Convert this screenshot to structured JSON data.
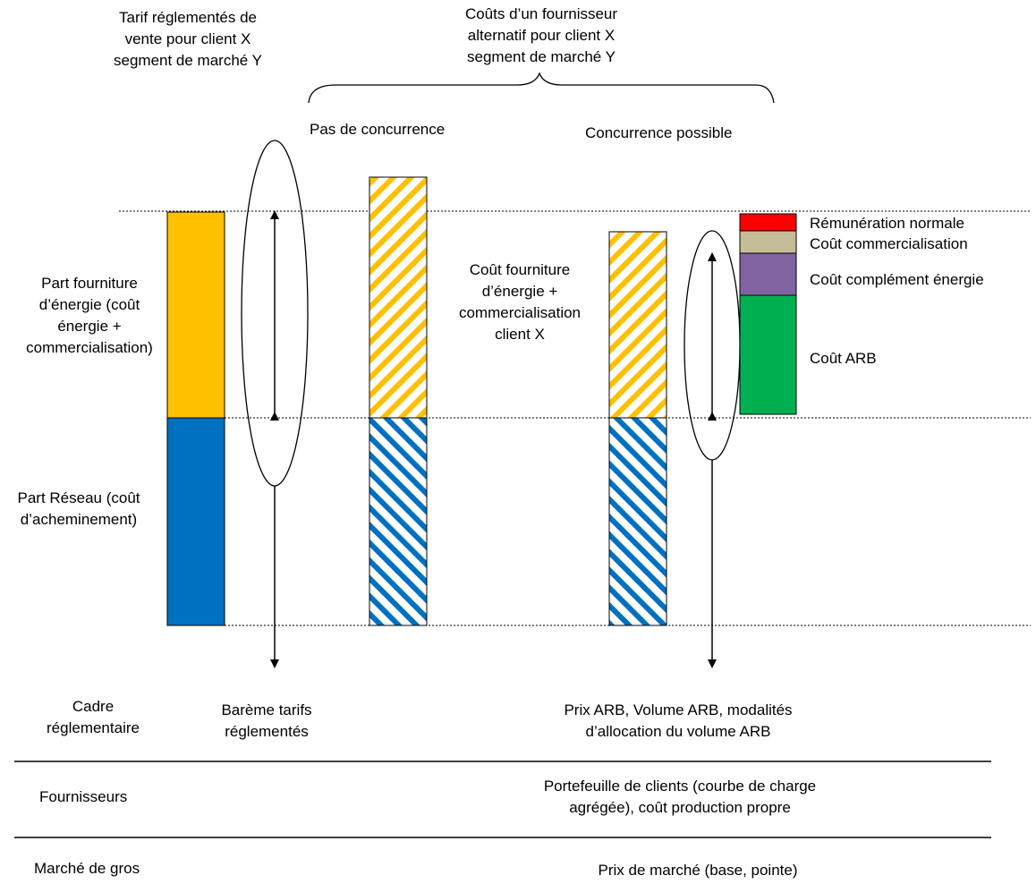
{
  "header": {
    "tariff_title": "Tarif réglementés de\nvente pour client X\nsegment de marché Y",
    "alt_title": "Coûts d’un fournisseur\nalternatif pour client X\nsegment de marché Y",
    "no_competition": "Pas de concurrence",
    "competition_possible": "Concurrence possible"
  },
  "left_labels": {
    "energy_part": "Part fourniture\nd’énergie (coût\nénergie +\ncommercialisation)",
    "network_part": "Part Réseau (coût\nd’acheminement)"
  },
  "middle_label": "Coût fourniture\nd’énergie +\ncommercialisation\nclient X",
  "stack_legend": {
    "normal_pay": "Rémunération normale",
    "commercial_cost": "Coût commercialisation",
    "energy_complement": "Coût complément énergie",
    "arb_cost": "Coût ARB"
  },
  "table": {
    "row1_label": "Cadre\nréglementaire",
    "row1_col1": "Barème tarifs\nréglementés",
    "row1_col2": "Prix ARB, Volume ARB, modalités\nd’allocation du volume ARB",
    "row2_label": "Fournisseurs",
    "row2_col2": "Portefeuille de clients (courbe de charge\nagrégée), coût production propre",
    "row3_label": "Marché de gros",
    "row3_col2": "Prix de marché (base, pointe)"
  },
  "colors": {
    "energy": "#FFC000",
    "network": "#0070C0",
    "normal_pay": "#FF0000",
    "commercial_cost": "#C4BD97",
    "energy_complement": "#8064A2",
    "arb_cost": "#00B050"
  }
}
